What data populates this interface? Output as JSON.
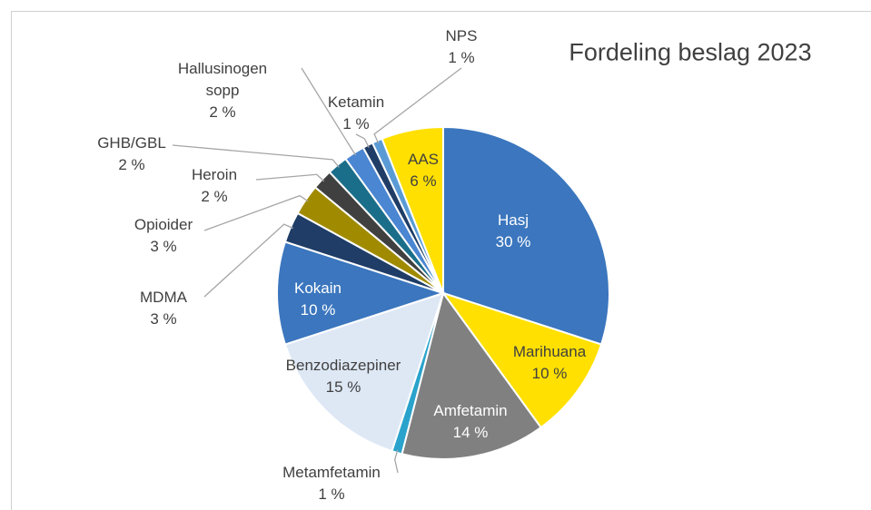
{
  "chart_data": {
    "type": "pie",
    "title": "Fordeling beslag 2023",
    "categories": [
      "Hasj",
      "Marihuana",
      "Amfetamin",
      "Metamfetamin",
      "Benzodiazepiner",
      "Kokain",
      "MDMA",
      "Opioider",
      "Heroin",
      "GHB/GBL",
      "Hallusinogen sopp",
      "Ketamin",
      "NPS",
      "AAS"
    ],
    "values": [
      30,
      10,
      14,
      1,
      15,
      10,
      3,
      3,
      2,
      2,
      2,
      1,
      1,
      6
    ],
    "value_labels": [
      "30 %",
      "10 %",
      "14 %",
      "1 %",
      "15 %",
      "10 %",
      "3 %",
      "3 %",
      "2 %",
      "2 %",
      "2 %",
      "1 %",
      "1 %",
      "6 %"
    ],
    "colors": [
      "#3b76be",
      "#ffe000",
      "#808080",
      "#2aa3cc",
      "#dee8f5",
      "#3b76be",
      "#1f3d66",
      "#a08b00",
      "#404040",
      "#1b6e8a",
      "#4a86d1",
      "#1f3d66",
      "#5b9bd5",
      "#ffe000"
    ]
  }
}
